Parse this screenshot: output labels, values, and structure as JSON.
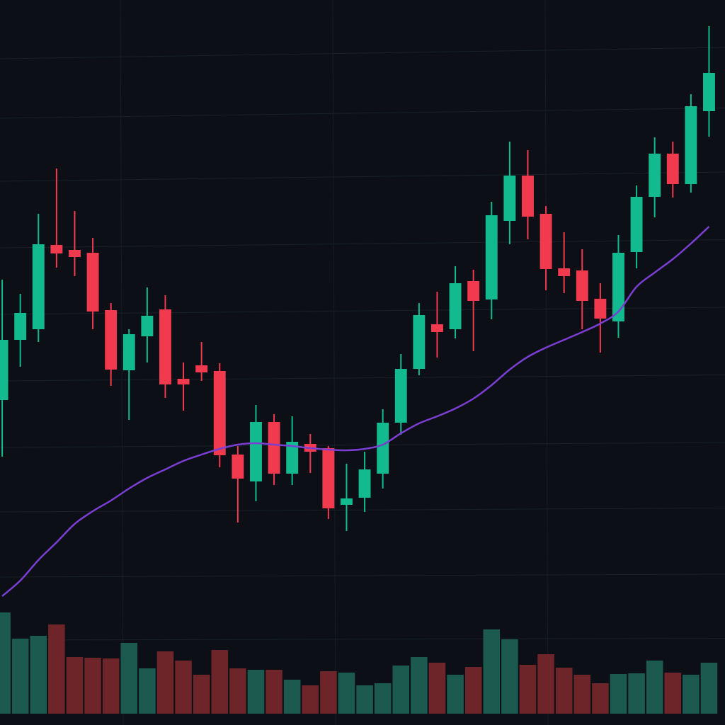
{
  "chart_data": {
    "type": "candlestick",
    "x": [
      0,
      1,
      2,
      3,
      4,
      5,
      6,
      7,
      8,
      9,
      10,
      11,
      12,
      13,
      14,
      15,
      16,
      17,
      18,
      19,
      20,
      21,
      22,
      23,
      24,
      25,
      26,
      27,
      28,
      29,
      30,
      31,
      32,
      33,
      34,
      35,
      36,
      37,
      38,
      39
    ],
    "open": [
      459,
      544,
      559,
      678,
      671,
      667,
      586,
      501,
      549,
      587,
      489,
      508,
      500,
      382,
      344,
      428,
      355,
      397,
      391,
      311,
      321,
      355,
      427,
      503,
      566,
      559,
      627,
      601,
      712,
      776,
      722,
      645,
      642,
      602,
      570,
      668,
      746,
      807,
      764,
      867
    ],
    "high": [
      629,
      609,
      722,
      786,
      726,
      688,
      596,
      559,
      618,
      607,
      512,
      541,
      511,
      394,
      452,
      439,
      436,
      411,
      394,
      369,
      386,
      446,
      524,
      596,
      612,
      648,
      643,
      739,
      824,
      812,
      733,
      696,
      672,
      624,
      692,
      762,
      830,
      824,
      891,
      987
    ],
    "low": [
      379,
      506,
      541,
      646,
      634,
      559,
      479,
      431,
      512,
      462,
      444,
      486,
      364,
      286,
      316,
      339,
      339,
      356,
      291,
      274,
      301,
      334,
      410,
      494,
      519,
      546,
      528,
      573,
      679,
      686,
      614,
      610,
      559,
      526,
      547,
      645,
      717,
      745,
      752,
      831
    ],
    "close": [
      544,
      582,
      679,
      666,
      661,
      584,
      502,
      552,
      578,
      481,
      481,
      498,
      381,
      348,
      428,
      355,
      400,
      386,
      306,
      320,
      361,
      427,
      503,
      579,
      555,
      624,
      599,
      720,
      776,
      718,
      644,
      634,
      599,
      574,
      667,
      746,
      807,
      764,
      874,
      921
    ],
    "volume": [
      143,
      106,
      110,
      126,
      80,
      79,
      78,
      100,
      64,
      88,
      75,
      55,
      90,
      64,
      62,
      62,
      48,
      40,
      60,
      58,
      40,
      43,
      68,
      80,
      72,
      55,
      66,
      119,
      105,
      69,
      84,
      65,
      55,
      43,
      56,
      57,
      75,
      58,
      55,
      72
    ],
    "moving_average": [
      182,
      204,
      233,
      258,
      284,
      302,
      317,
      334,
      349,
      361,
      373,
      382,
      390,
      396,
      398,
      396,
      394,
      391,
      389,
      388,
      390,
      396,
      412,
      426,
      436,
      447,
      461,
      480,
      502,
      520,
      533,
      544,
      555,
      567,
      584,
      619,
      639,
      658,
      680,
      704
    ],
    "up_color": "#13b98f",
    "down_color": "#f23a4f",
    "volume_up_color": "#1c5a50",
    "volume_down_color": "#6d2529",
    "ma_color": "#7a3ed2",
    "xlim": [
      -0.12,
      39.88
    ],
    "ylim": [
      0,
      1024
    ],
    "y2lim": [
      0,
      200
    ],
    "grid": true
  }
}
